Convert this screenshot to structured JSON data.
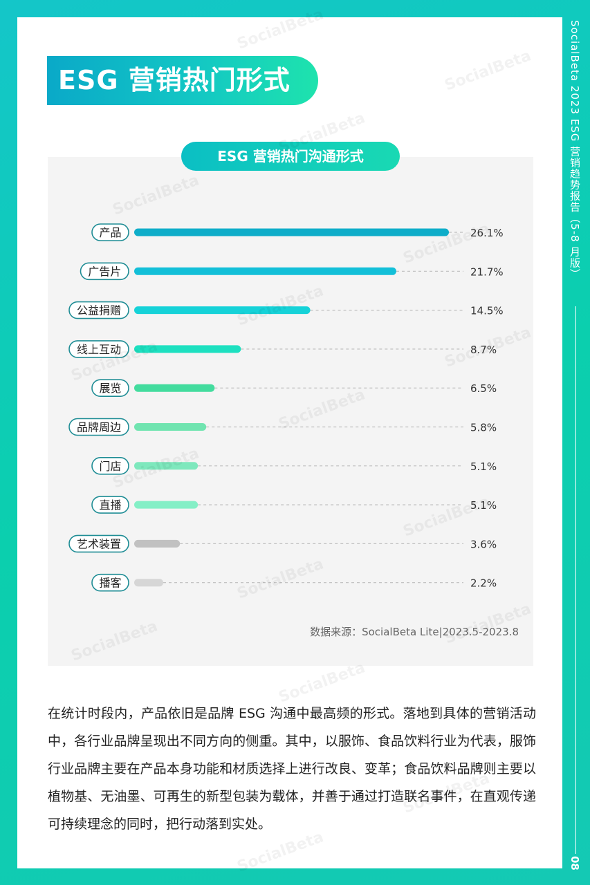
{
  "section_title": "ESG 营销热门形式",
  "side_text": "SocialBeta 2023 ESG 营销趋势报告（5-8 月版）",
  "page_number": "08",
  "watermark": "SocialBeta",
  "chart_data": {
    "type": "bar",
    "orientation": "horizontal",
    "title": "ESG 营销热门沟通形式",
    "categories": [
      "产品",
      "广告片",
      "公益捐赠",
      "线上互动",
      "展览",
      "品牌周边",
      "门店",
      "直播",
      "艺术装置",
      "播客"
    ],
    "values": [
      26.1,
      21.7,
      14.5,
      8.7,
      6.5,
      5.8,
      5.1,
      5.1,
      3.6,
      2.2
    ],
    "value_labels": [
      "26.1%",
      "21.7%",
      "14.5%",
      "8.7%",
      "6.5%",
      "5.8%",
      "5.1%",
      "5.1%",
      "3.6%",
      "2.2%"
    ],
    "bar_colors": [
      "#0eadc9",
      "#13bfd8",
      "#16d2d8",
      "#1de0c0",
      "#43dc9e",
      "#70e4b0",
      "#7ee8bd",
      "#84efc6",
      "#c1c1c1",
      "#d6d6d6"
    ],
    "grid": false,
    "source": "数据来源：SocialBeta Lite|2023.5-2023.8"
  },
  "body_text": "在统计时段内，产品依旧是品牌 ESG 沟通中最高频的形式。落地到具体的营销活动中，各行业品牌呈现出不同方向的侧重。其中，以服饰、食品饮料行业为代表，服饰行业品牌主要在产品本身功能和材质选择上进行改良、变革；食品饮料品牌则主要以植物基、无油墨、可再生的新型包装为载体，并善于通过打造联名事件，在直观传递可持续理念的同时，把行动落到实处。"
}
